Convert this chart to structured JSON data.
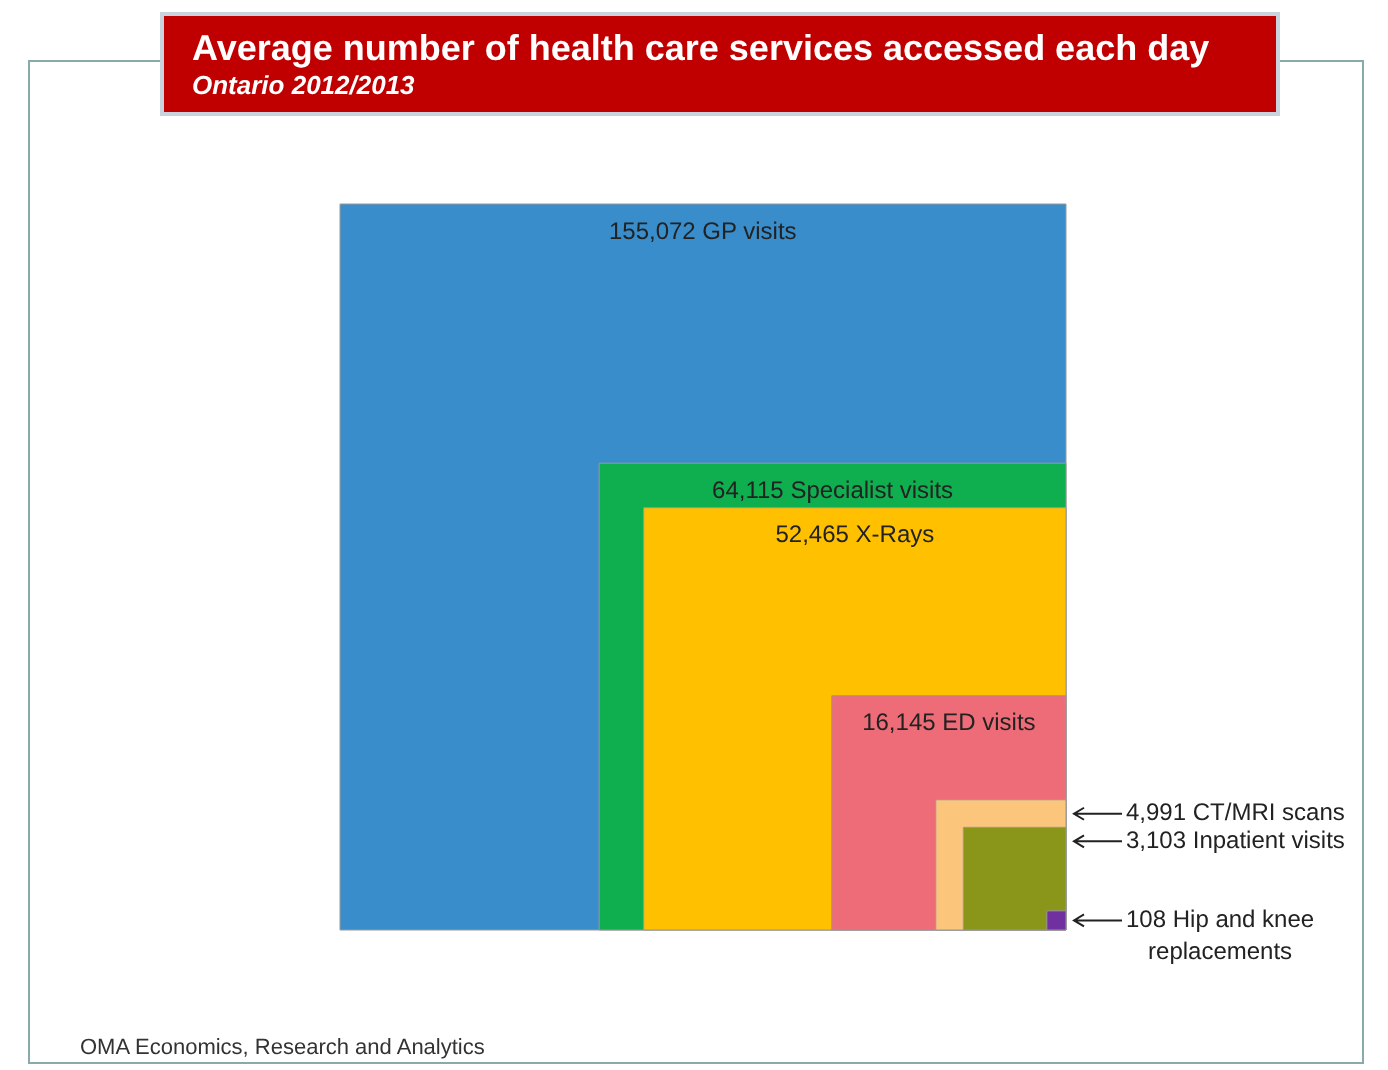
{
  "chart_data": {
    "type": "other",
    "title": "Average number of health care services accessed each day",
    "subtitle": "Ontario 2012/2013",
    "categories": [
      "GP visits",
      "Specialist visits",
      "X-Rays",
      "ED visits",
      "CT/MRI scans",
      "Inpatient visits",
      "Hip and knee replacements"
    ],
    "values": [
      155072,
      64115,
      52465,
      16145,
      4991,
      3103,
      108
    ],
    "value_labels": [
      "155,072",
      "64,115",
      "52,465",
      "16,145",
      "4,991",
      "3,103",
      "108"
    ],
    "colors": [
      "#3a8dcb",
      "#0fae4e",
      "#ffc000",
      "#ee6c78",
      "#fcc57c",
      "#8a961a",
      "#7030a0"
    ],
    "annotations": [
      "OMA Economics, Research and Analytics"
    ]
  }
}
